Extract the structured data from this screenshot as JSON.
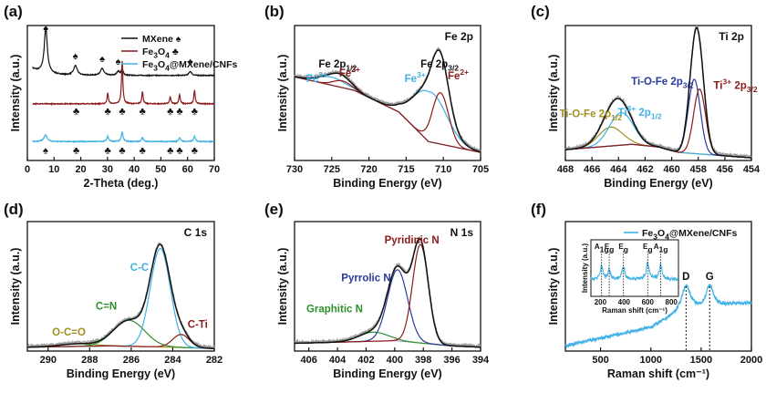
{
  "figure": {
    "panel_labels": [
      "(a)",
      "(b)",
      "(c)",
      "(d)",
      "(e)",
      "(f)"
    ],
    "colors": {
      "black": "#111111",
      "red": "#8b1a1a",
      "cyan": "#3fb1e6",
      "navy": "#2a3a9c",
      "green": "#2d8f2d",
      "olive": "#a09020",
      "gray": "#9a9a9a"
    }
  },
  "chart_data": [
    {
      "panel": "(a)",
      "type": "line",
      "xlabel": "2-Theta (deg.)",
      "ylabel": "Intensity (a.u.)",
      "xlim": [
        0,
        70
      ],
      "xticks": [
        0,
        10,
        20,
        30,
        40,
        50,
        60,
        70
      ],
      "legend_position": "top-right",
      "series": [
        {
          "name": "MXene ♠",
          "color": "#111111",
          "offset": 0.63,
          "peaks": [
            [
              6.9,
              0.33,
              0.7
            ],
            [
              18.0,
              0.07,
              0.8
            ],
            [
              28.0,
              0.05,
              0.8
            ],
            [
              34.0,
              0.03,
              0.6
            ],
            [
              35.5,
              0.05,
              0.4
            ],
            [
              61.0,
              0.03,
              0.6
            ]
          ]
        },
        {
          "name": "Fe3O4 ♣",
          "color": "#8b1a1a",
          "offset": 0.42,
          "peaks": [
            [
              30.1,
              0.08,
              0.3
            ],
            [
              35.5,
              0.32,
              0.3
            ],
            [
              43.1,
              0.09,
              0.3
            ],
            [
              53.5,
              0.05,
              0.3
            ],
            [
              57.0,
              0.07,
              0.3
            ],
            [
              62.6,
              0.1,
              0.3
            ]
          ]
        },
        {
          "name": "Fe3O4@MXene/CNFs",
          "color": "#3fb1e6",
          "offset": 0.14,
          "peaks": [
            [
              6.8,
              0.05,
              0.7
            ],
            [
              30.1,
              0.04,
              0.4
            ],
            [
              35.5,
              0.07,
              0.4
            ],
            [
              43.1,
              0.03,
              0.4
            ],
            [
              57.0,
              0.03,
              0.4
            ],
            [
              62.6,
              0.04,
              0.4
            ]
          ]
        }
      ],
      "markers": {
        "mxene": [
          [
            6.9,
            "♠"
          ],
          [
            18.0,
            "♠"
          ],
          [
            28.0,
            "♠"
          ],
          [
            34.0,
            "♠"
          ],
          [
            61.0,
            "♠"
          ]
        ],
        "fe3o4": [
          [
            18.3,
            "♣"
          ],
          [
            30.1,
            "♣"
          ],
          [
            35.5,
            "♣"
          ],
          [
            43.1,
            "♣"
          ],
          [
            53.5,
            "♣"
          ],
          [
            57.0,
            "♣"
          ],
          [
            62.6,
            "♣"
          ]
        ],
        "composite": [
          [
            6.8,
            "♠"
          ],
          [
            18.3,
            "♣"
          ],
          [
            30.1,
            "♣"
          ],
          [
            35.5,
            "♣"
          ],
          [
            43.1,
            "♣"
          ],
          [
            53.5,
            "♣"
          ],
          [
            57.0,
            "♣"
          ],
          [
            62.6,
            "♣"
          ]
        ]
      }
    },
    {
      "panel": "(b)",
      "type": "line",
      "title": "Fe 2p",
      "xlabel": "Binding Energy (eV)",
      "ylabel": "Intensity (a.u.)",
      "xlim": [
        730,
        705
      ],
      "xticks": [
        730,
        725,
        720,
        715,
        710,
        705
      ],
      "baseline": [
        [
          730,
          0.62
        ],
        [
          722,
          0.52
        ],
        [
          716,
          0.36
        ],
        [
          712,
          0.14
        ],
        [
          705,
          0.06
        ]
      ],
      "components": [
        {
          "name": "Fe3+ 2p1/2",
          "color": "#3fb1e6",
          "center": 725.0,
          "height": 0.06,
          "width": 1.8
        },
        {
          "name": "Fe2+ 2p1/2",
          "color": "#8b1a1a",
          "center": 723.6,
          "height": 0.05,
          "width": 1.2
        },
        {
          "name": "Fe3+ 2p3/2",
          "color": "#3fb1e6",
          "center": 711.8,
          "height": 0.37,
          "width": 2.2
        },
        {
          "name": "Fe2+ 2p3/2",
          "color": "#8b1a1a",
          "center": 710.4,
          "height": 0.38,
          "width": 1.1
        }
      ],
      "annotations": [
        {
          "text": "Fe 2p1/2",
          "x": 724.2,
          "color": "#111111"
        },
        {
          "text": "Fe3+",
          "x": 727.0,
          "color": "#3fb1e6"
        },
        {
          "text": "Fe2+",
          "x": 722.6,
          "color": "#8b1a1a"
        },
        {
          "text": "Fe 2p3/2",
          "x": 710.5,
          "color": "#111111"
        },
        {
          "text": "Fe3+",
          "x": 713.8,
          "color": "#3fb1e6"
        },
        {
          "text": "Fe2+",
          "x": 708.0,
          "color": "#8b1a1a"
        }
      ]
    },
    {
      "panel": "(c)",
      "type": "line",
      "title": "Ti 2p",
      "xlabel": "Binding Energy (eV)",
      "ylabel": "Intensity (a.u.)",
      "xlim": [
        468,
        454
      ],
      "xticks": [
        468,
        466,
        464,
        462,
        460,
        458,
        456,
        454
      ],
      "baseline": [
        [
          468,
          0.08
        ],
        [
          463,
          0.12
        ],
        [
          461,
          0.1
        ],
        [
          459.5,
          0.06
        ],
        [
          454,
          0.02
        ]
      ],
      "components": [
        {
          "name": "Ti-O-Fe 2p1/2",
          "color": "#a09020",
          "center": 464.6,
          "height": 0.14,
          "width": 0.9
        },
        {
          "name": "Ti3+ 2p1/2",
          "color": "#3fb1e6",
          "center": 463.8,
          "height": 0.24,
          "width": 0.9
        },
        {
          "name": "Ti-O-Fe 2p3/2",
          "color": "#2a3a9c",
          "center": 458.3,
          "height": 0.55,
          "width": 0.45
        },
        {
          "name": "Ti3+ 2p3/2",
          "color": "#8b1a1a",
          "center": 457.9,
          "height": 0.48,
          "width": 0.45
        }
      ],
      "annotations": [
        {
          "text": "Ti-O-Fe 2p1/2",
          "x": 466.1,
          "color": "#a09020"
        },
        {
          "text": "Ti3+ 2p1/2",
          "x": 462.4,
          "color": "#3fb1e6"
        },
        {
          "text": "Ti-O-Fe 2p3/2",
          "x": 460.7,
          "color": "#2a3a9c"
        },
        {
          "text": "Ti3+ 2p3/2",
          "x": 455.2,
          "color": "#8b1a1a"
        }
      ]
    },
    {
      "panel": "(d)",
      "type": "line",
      "title": "C 1s",
      "xlabel": "Binding Energy (eV)",
      "ylabel": "Intensity (a.u.)",
      "xlim": [
        291,
        282
      ],
      "xticks": [
        290,
        288,
        286,
        284,
        282
      ],
      "baseline": [
        [
          291,
          0.03
        ],
        [
          287,
          0.04
        ],
        [
          284,
          0.03
        ],
        [
          282,
          0.02
        ]
      ],
      "components": [
        {
          "name": "O-C=O",
          "color": "#a09020",
          "center": 288.6,
          "height": 0.02,
          "width": 0.8
        },
        {
          "name": "C=N",
          "color": "#2d8f2d",
          "center": 286.1,
          "height": 0.2,
          "width": 0.75
        },
        {
          "name": "C-C",
          "color": "#3fb1e6",
          "center": 284.6,
          "height": 0.76,
          "width": 0.48
        },
        {
          "name": "C-Ti",
          "color": "#8b1a1a",
          "center": 283.6,
          "height": 0.1,
          "width": 0.4
        }
      ],
      "annotations": [
        {
          "text": "O-C=O",
          "x": 289.0,
          "color": "#a09020"
        },
        {
          "text": "C=N",
          "x": 287.2,
          "color": "#2d8f2d"
        },
        {
          "text": "C-C",
          "x": 285.6,
          "color": "#3fb1e6"
        },
        {
          "text": "C-Ti",
          "x": 282.8,
          "color": "#8b1a1a"
        }
      ]
    },
    {
      "panel": "(e)",
      "type": "line",
      "title": "N 1s",
      "xlabel": "Binding Energy (eV)",
      "ylabel": "Intensity (a.u.)",
      "xlim": [
        407,
        394
      ],
      "xticks": [
        406,
        404,
        402,
        400,
        398,
        396,
        394
      ],
      "baseline": [
        [
          407,
          0.06
        ],
        [
          400,
          0.08
        ],
        [
          396,
          0.04
        ],
        [
          394,
          0.03
        ]
      ],
      "components": [
        {
          "name": "Graphitic N",
          "color": "#2d8f2d",
          "center": 401.5,
          "height": 0.07,
          "width": 1.0
        },
        {
          "name": "Pyrrolic N",
          "color": "#2a3a9c",
          "center": 399.8,
          "height": 0.55,
          "width": 0.7
        },
        {
          "name": "Pyridinic N",
          "color": "#8b1a1a",
          "center": 398.2,
          "height": 0.76,
          "width": 0.55
        }
      ],
      "annotations": [
        {
          "text": "Graphitic N",
          "x": 404.2,
          "color": "#2d8f2d"
        },
        {
          "text": "Pyrrolic N",
          "x": 402.0,
          "color": "#2a3a9c"
        },
        {
          "text": "Pyridinic N",
          "x": 398.8,
          "color": "#8b1a1a"
        }
      ]
    },
    {
      "panel": "(f)",
      "type": "line",
      "xlabel": "Raman shift (cm⁻¹)",
      "ylabel": "Intensity (a.u.)",
      "xlim": [
        150,
        2000
      ],
      "xticks": [
        500,
        1000,
        1500,
        2000
      ],
      "legend_position": "top-right",
      "series": [
        {
          "name": "Fe3O4@MXene/CNFs",
          "color": "#3fb1e6",
          "baseline": [
            [
              150,
              0.04
            ],
            [
              1000,
              0.18
            ],
            [
              1200,
              0.25
            ],
            [
              1800,
              0.36
            ],
            [
              2000,
              0.37
            ]
          ],
          "peaks": [
            [
              1350,
              0.22,
              60
            ],
            [
              1585,
              0.18,
              45
            ]
          ]
        }
      ],
      "peak_labels": [
        {
          "text": "D",
          "x": 1350
        },
        {
          "text": "G",
          "x": 1585
        }
      ],
      "inset": {
        "xlabel": "Raman shift (cm⁻¹)",
        "ylabel": "Intensity (a.u.)",
        "xlim": [
          120,
          860
        ],
        "xticks": [
          200,
          400,
          600,
          800
        ],
        "peaks": [
          [
            210,
            0.25,
            12
          ],
          [
            275,
            0.18,
            12
          ],
          [
            395,
            0.22,
            15
          ],
          [
            600,
            0.28,
            15
          ],
          [
            710,
            0.25,
            15
          ]
        ],
        "peak_labels": [
          {
            "text": "A1g",
            "x": 210
          },
          {
            "text": "Eg",
            "x": 275
          },
          {
            "text": "Eg",
            "x": 395
          },
          {
            "text": "Eg",
            "x": 600
          },
          {
            "text": "A1g",
            "x": 710
          }
        ]
      }
    }
  ]
}
